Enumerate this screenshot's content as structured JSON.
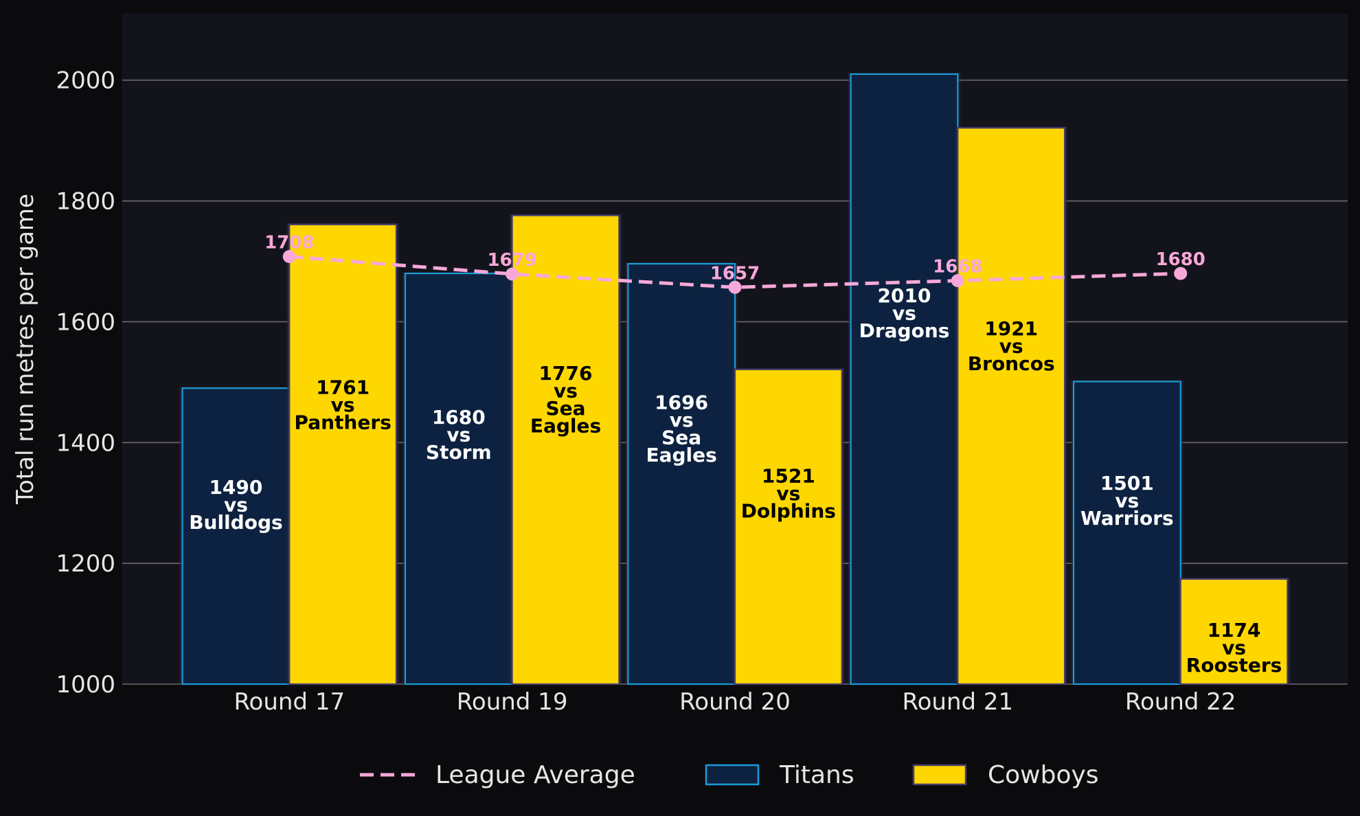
{
  "chart_data": {
    "type": "bar",
    "ylabel": "Total run metres per game",
    "xlabel": "",
    "ylim": [
      1000,
      2110
    ],
    "yticks": [
      1000,
      1200,
      1400,
      1600,
      1800,
      2000
    ],
    "grid": "horizontal",
    "legend_position": "bottom-center",
    "categories": [
      "Round 17",
      "Round 19",
      "Round 20",
      "Round 21",
      "Round 22"
    ],
    "series": [
      {
        "name": "Titans",
        "values": [
          1490,
          1680,
          1696,
          2010,
          1501
        ],
        "opponents": [
          "Bulldogs",
          "Storm",
          "Sea Eagles",
          "Dragons",
          "Warriors"
        ],
        "fill": "#0d2240",
        "edge": "#1a9bd7",
        "text_color": "#ffffff"
      },
      {
        "name": "Cowboys",
        "values": [
          1761,
          1776,
          1521,
          1921,
          1174
        ],
        "opponents": [
          "Panthers",
          "Sea Eagles",
          "Dolphins",
          "Broncos",
          "Roosters"
        ],
        "fill": "#ffd700",
        "edge": "#4a3f6b",
        "text_color": "#000000"
      }
    ],
    "line": {
      "name": "League Average",
      "values": [
        1708,
        1679,
        1657,
        1668,
        1680
      ],
      "color": "#f8a8d8",
      "style": "dashed"
    },
    "versus_word": "vs"
  },
  "colors": {
    "background": "#0b0b0e",
    "plot_background": "#13141b",
    "grid": "#6b6b6b",
    "axis_text": "#e6e6e6"
  }
}
